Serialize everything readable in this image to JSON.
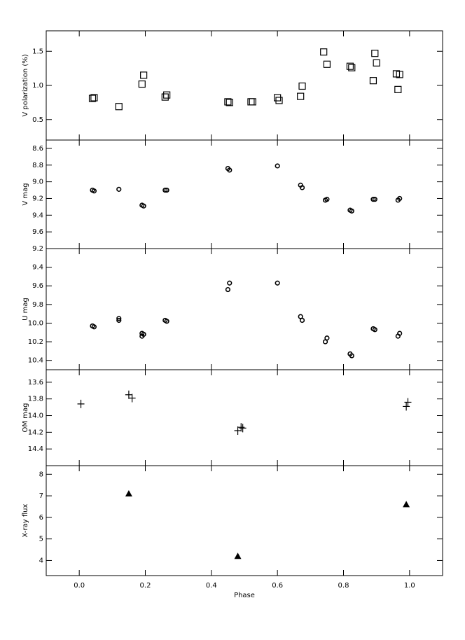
{
  "chart_data": [
    {
      "type": "scatter",
      "y_label": "V polarization (%)",
      "marker": "square",
      "x": [
        0.04,
        0.045,
        0.12,
        0.19,
        0.195,
        0.26,
        0.265,
        0.45,
        0.455,
        0.52,
        0.525,
        0.6,
        0.605,
        0.67,
        0.675,
        0.74,
        0.75,
        0.82,
        0.825,
        0.89,
        0.895,
        0.9,
        0.96,
        0.965,
        0.97
      ],
      "values": [
        0.81,
        0.82,
        0.69,
        1.02,
        1.15,
        0.83,
        0.86,
        0.76,
        0.75,
        0.76,
        0.76,
        0.82,
        0.78,
        0.84,
        0.99,
        1.49,
        1.31,
        1.28,
        1.26,
        1.07,
        1.47,
        1.33,
        1.17,
        0.94,
        1.16
      ],
      "ylim": [
        0.2,
        1.8
      ],
      "yticks": [
        0.5,
        {
          "value": 1,
          "label": "1.0"
        },
        1.5
      ]
    },
    {
      "type": "scatter",
      "y_label": "V mag",
      "marker": "circle",
      "x": [
        0.04,
        0.045,
        0.12,
        0.19,
        0.195,
        0.26,
        0.265,
        0.45,
        0.455,
        0.6,
        0.67,
        0.675,
        0.745,
        0.75,
        0.82,
        0.825,
        0.89,
        0.895,
        0.965,
        0.97
      ],
      "values": [
        9.1,
        9.11,
        9.09,
        9.28,
        9.29,
        9.1,
        9.1,
        8.84,
        8.86,
        8.81,
        9.04,
        9.07,
        9.22,
        9.21,
        9.34,
        9.35,
        9.21,
        9.21,
        9.22,
        9.2
      ],
      "ylim": [
        9.8,
        8.5
      ],
      "yticks": [
        8.6,
        8.8,
        {
          "value": 9,
          "label": "9.0"
        },
        9.2,
        9.4,
        9.6
      ]
    },
    {
      "type": "scatter",
      "y_label": "U mag",
      "marker": "circle",
      "x": [
        0.04,
        0.045,
        0.12,
        0.12,
        0.19,
        0.19,
        0.195,
        0.26,
        0.265,
        0.45,
        0.455,
        0.6,
        0.67,
        0.675,
        0.745,
        0.75,
        0.82,
        0.825,
        0.89,
        0.895,
        0.965,
        0.97
      ],
      "values": [
        10.03,
        10.04,
        9.95,
        9.97,
        10.11,
        10.14,
        10.12,
        9.97,
        9.98,
        9.64,
        9.57,
        9.57,
        9.93,
        9.97,
        10.2,
        10.16,
        10.33,
        10.35,
        10.06,
        10.07,
        10.14,
        10.11
      ],
      "ylim": [
        10.5,
        9.2
      ],
      "yticks": [
        9.2,
        9.4,
        9.6,
        9.8,
        {
          "value": 10,
          "label": "10.0"
        },
        10.2,
        10.4
      ]
    },
    {
      "type": "scatter",
      "y_label": "OM mag",
      "marker": "plus",
      "x": [
        0.005,
        0.15,
        0.16,
        0.48,
        0.49,
        0.495,
        0.99,
        0.995
      ],
      "values": [
        13.86,
        13.75,
        13.79,
        14.18,
        14.14,
        14.15,
        13.89,
        13.84
      ],
      "ylim": [
        14.6,
        13.45
      ],
      "yticks": [
        13.6,
        13.8,
        {
          "value": 14,
          "label": "14.0"
        },
        14.2,
        14.4
      ]
    },
    {
      "type": "scatter",
      "y_label": "X-ray flux",
      "x_label": "Phase",
      "marker": "triangle",
      "x": [
        0.15,
        0.48,
        0.99
      ],
      "values": [
        7.1,
        4.2,
        6.6
      ],
      "ylim": [
        3.3,
        8.4
      ],
      "yticks": [
        4,
        5,
        6,
        7,
        8
      ],
      "xlim": [
        -0.1,
        1.1
      ],
      "xticks": [
        {
          "value": 0,
          "label": "0.0"
        },
        0.2,
        0.4,
        0.6,
        0.8,
        {
          "value": 1,
          "label": "1.0"
        }
      ]
    }
  ]
}
